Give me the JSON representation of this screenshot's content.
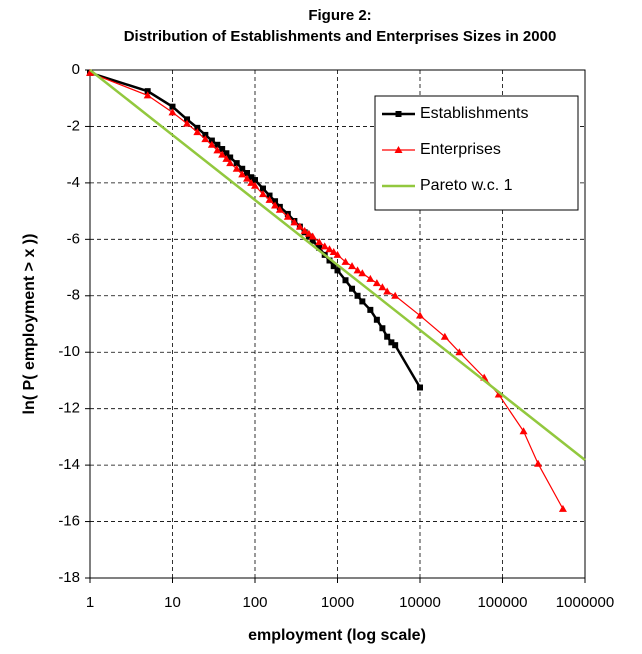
{
  "chart_data": {
    "type": "line",
    "title": "Figure 2:",
    "subtitle": "Distribution of Establishments and Enterprises Sizes in 2000",
    "x_label": "employment (log scale)",
    "y_label": "ln( P( employment > x ))",
    "xscale": "log",
    "xlim": [
      1,
      1000000
    ],
    "xticks": [
      1,
      10,
      100,
      1000,
      10000,
      100000,
      1000000
    ],
    "ylim": [
      -18,
      0
    ],
    "yticks": [
      0,
      -2,
      -4,
      -6,
      -8,
      -10,
      -12,
      -14,
      -16,
      -18
    ],
    "grid": true,
    "legend": "upper right",
    "series": [
      {
        "name": "Establishments",
        "color": "#000000",
        "marker": "square",
        "x": [
          1,
          5,
          10,
          15,
          20,
          25,
          30,
          35,
          40,
          45,
          50,
          60,
          70,
          80,
          90,
          100,
          125,
          150,
          175,
          200,
          250,
          300,
          350,
          400,
          450,
          500,
          600,
          700,
          800,
          900,
          1000,
          1250,
          1500,
          1750,
          2000,
          2500,
          3000,
          3500,
          4000,
          4500,
          5000,
          10000
        ],
        "values": [
          -0.1,
          -0.75,
          -1.3,
          -1.75,
          -2.05,
          -2.3,
          -2.5,
          -2.65,
          -2.8,
          -2.95,
          -3.1,
          -3.3,
          -3.5,
          -3.65,
          -3.8,
          -3.9,
          -4.2,
          -4.45,
          -4.65,
          -4.85,
          -5.1,
          -5.35,
          -5.55,
          -5.75,
          -5.9,
          -6.05,
          -6.3,
          -6.55,
          -6.75,
          -6.95,
          -7.1,
          -7.45,
          -7.75,
          -8.0,
          -8.2,
          -8.5,
          -8.85,
          -9.15,
          -9.45,
          -9.65,
          -9.75,
          -11.25
        ]
      },
      {
        "name": "Enterprises",
        "color": "#ff0000",
        "marker": "triangle",
        "x": [
          1,
          5,
          10,
          15,
          20,
          25,
          30,
          35,
          40,
          45,
          50,
          60,
          70,
          80,
          90,
          100,
          125,
          150,
          175,
          200,
          250,
          300,
          350,
          400,
          450,
          500,
          600,
          700,
          800,
          900,
          1000,
          1250,
          1500,
          1750,
          2000,
          2500,
          3000,
          3500,
          4000,
          5000,
          10000,
          20000,
          30000,
          60000,
          90000,
          180000,
          270000,
          540000
        ],
        "values": [
          -0.1,
          -0.9,
          -1.5,
          -1.9,
          -2.2,
          -2.45,
          -2.65,
          -2.85,
          -3.0,
          -3.15,
          -3.3,
          -3.5,
          -3.7,
          -3.85,
          -4.0,
          -4.1,
          -4.4,
          -4.6,
          -4.8,
          -4.95,
          -5.2,
          -5.4,
          -5.55,
          -5.7,
          -5.8,
          -5.9,
          -6.1,
          -6.25,
          -6.35,
          -6.45,
          -6.55,
          -6.8,
          -6.95,
          -7.1,
          -7.2,
          -7.4,
          -7.55,
          -7.7,
          -7.85,
          -8.0,
          -8.7,
          -9.45,
          -10.0,
          -10.9,
          -11.5,
          -12.8,
          -13.95,
          -15.55
        ]
      },
      {
        "name": "Pareto w.c. 1",
        "color": "#92c83e",
        "marker": "none",
        "x": [
          1,
          1000000
        ],
        "values": [
          0,
          -13.82
        ]
      }
    ]
  }
}
